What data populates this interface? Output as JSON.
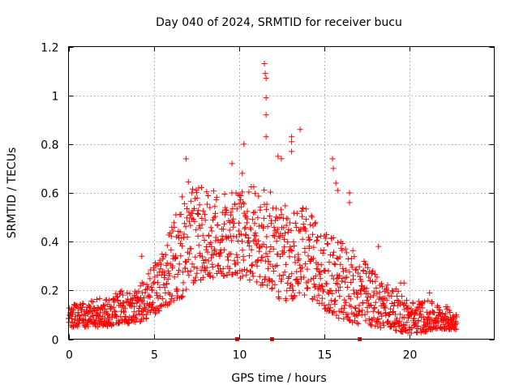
{
  "chart_data": {
    "type": "scatter",
    "title": "Day 040 of 2024, SRMTID for receiver bucu",
    "xlabel": "GPS time / hours",
    "ylabel": "SRMTID / TECUs",
    "xlim": [
      0,
      25
    ],
    "ylim": [
      0,
      1.2
    ],
    "xticks": [
      0,
      5,
      10,
      15,
      20
    ],
    "yticks": [
      0,
      0.2,
      0.4,
      0.6,
      0.8,
      1,
      1.2
    ],
    "xtick_labels": [
      "0",
      "5",
      "10",
      "15",
      "20"
    ],
    "ytick_labels": [
      "0",
      "0.2",
      "0.4",
      "0.6",
      "0.8",
      "1",
      "1.2"
    ],
    "grid": true,
    "marker": "+",
    "color": "#ff0000",
    "series": [
      {
        "name": "SRMTID",
        "envelope": {
          "x": [
            0.0,
            1.0,
            2.0,
            3.0,
            4.0,
            5.0,
            5.5,
            6.0,
            6.5,
            7.0,
            8.0,
            9.0,
            10.0,
            10.5,
            11.0,
            11.5,
            12.0,
            12.5,
            13.0,
            13.5,
            14.0,
            15.0,
            15.5,
            16.0,
            17.0,
            18.0,
            19.0,
            20.0,
            21.0,
            22.0,
            22.8
          ],
          "low": [
            0.05,
            0.05,
            0.05,
            0.06,
            0.06,
            0.1,
            0.12,
            0.15,
            0.15,
            0.2,
            0.25,
            0.25,
            0.25,
            0.25,
            0.22,
            0.22,
            0.2,
            0.15,
            0.15,
            0.18,
            0.18,
            0.12,
            0.1,
            0.08,
            0.06,
            0.05,
            0.04,
            0.02,
            0.03,
            0.04,
            0.04
          ],
          "high": [
            0.14,
            0.15,
            0.17,
            0.2,
            0.22,
            0.3,
            0.38,
            0.45,
            0.55,
            0.65,
            0.62,
            0.6,
            0.6,
            0.62,
            0.65,
            0.62,
            0.6,
            0.55,
            0.55,
            0.55,
            0.55,
            0.45,
            0.42,
            0.4,
            0.35,
            0.28,
            0.22,
            0.16,
            0.16,
            0.14,
            0.12
          ]
        },
        "outliers": [
          {
            "x": 4.3,
            "y": 0.34
          },
          {
            "x": 6.9,
            "y": 0.74
          },
          {
            "x": 9.6,
            "y": 0.72
          },
          {
            "x": 10.3,
            "y": 0.8
          },
          {
            "x": 10.2,
            "y": 0.68
          },
          {
            "x": 11.5,
            "y": 1.13
          },
          {
            "x": 11.55,
            "y": 1.09
          },
          {
            "x": 11.6,
            "y": 1.07
          },
          {
            "x": 11.6,
            "y": 0.99
          },
          {
            "x": 11.6,
            "y": 0.92
          },
          {
            "x": 11.6,
            "y": 0.83
          },
          {
            "x": 12.3,
            "y": 0.75
          },
          {
            "x": 12.5,
            "y": 0.74
          },
          {
            "x": 13.1,
            "y": 0.83
          },
          {
            "x": 13.1,
            "y": 0.81
          },
          {
            "x": 13.1,
            "y": 0.77
          },
          {
            "x": 13.6,
            "y": 0.86
          },
          {
            "x": 15.5,
            "y": 0.74
          },
          {
            "x": 15.55,
            "y": 0.7
          },
          {
            "x": 15.7,
            "y": 0.64
          },
          {
            "x": 15.8,
            "y": 0.61
          },
          {
            "x": 16.5,
            "y": 0.6
          },
          {
            "x": 16.5,
            "y": 0.56
          },
          {
            "x": 18.2,
            "y": 0.38
          },
          {
            "x": 19.5,
            "y": 0.23
          },
          {
            "x": 19.7,
            "y": 0.23
          },
          {
            "x": 21.2,
            "y": 0.19
          }
        ]
      }
    ],
    "gap_markers_x": [
      9.9,
      11.95,
      17.1
    ]
  }
}
